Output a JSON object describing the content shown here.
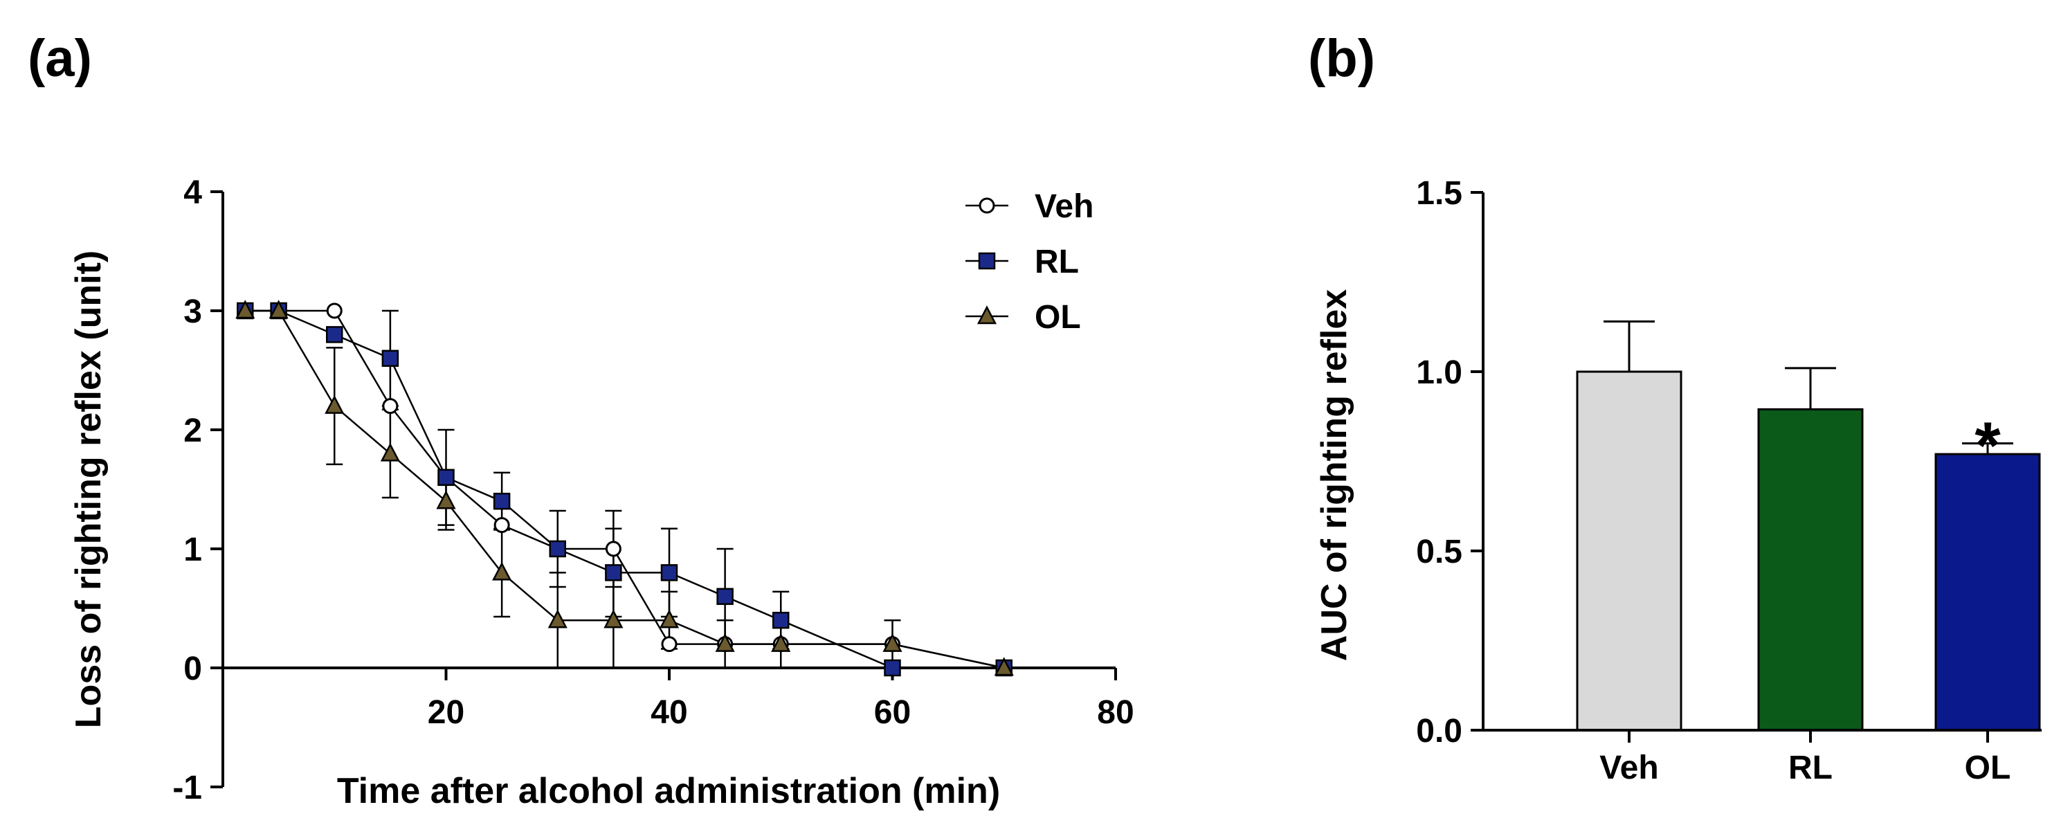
{
  "panels": {
    "a_label": "(a)",
    "b_label": "(b)"
  },
  "chart_data": [
    {
      "id": "a",
      "type": "line",
      "title": "",
      "xlabel": "Time after alcohol administration (min)",
      "ylabel": "Loss of righting reflex (unit)",
      "xlim": [
        0,
        80
      ],
      "ylim": [
        -1,
        4
      ],
      "xticks": [
        20,
        40,
        60,
        80
      ],
      "yticks": [
        -1,
        0,
        1,
        2,
        3,
        4
      ],
      "xtick_labels": [
        "20",
        "40",
        "60",
        "80"
      ],
      "ytick_labels": [
        "-1",
        "0",
        "1",
        "2",
        "3",
        "4"
      ],
      "grid": false,
      "legend_position": "top-right",
      "series": [
        {
          "name": "Veh",
          "marker": "open-circle",
          "color": "#000000",
          "fill": "#ffffff",
          "x": [
            2,
            5,
            10,
            15,
            20,
            25,
            30,
            35,
            40,
            45,
            50,
            60,
            70
          ],
          "y": [
            3,
            3,
            3,
            2.2,
            1.6,
            1.2,
            1.0,
            1.0,
            0.2,
            0.2,
            0.2,
            0.2,
            0
          ],
          "err": [
            0,
            0,
            0,
            0,
            0,
            0,
            0,
            0.32,
            0,
            0,
            0,
            0,
            0
          ]
        },
        {
          "name": "RL",
          "marker": "square",
          "color": "#000000",
          "fill": "#1b2a8a",
          "x": [
            2,
            5,
            10,
            15,
            20,
            25,
            30,
            35,
            40,
            45,
            50,
            60,
            70
          ],
          "y": [
            3,
            3,
            2.8,
            2.6,
            1.6,
            1.4,
            1.0,
            0.8,
            0.8,
            0.6,
            0.4,
            0,
            0
          ],
          "err": [
            0,
            0,
            0,
            0.4,
            0.4,
            0.24,
            0.32,
            0.37,
            0.37,
            0.4,
            0.24,
            0,
            0
          ]
        },
        {
          "name": "OL",
          "marker": "triangle",
          "color": "#000000",
          "fill": "#6b5a2e",
          "x": [
            2,
            5,
            10,
            15,
            20,
            25,
            30,
            35,
            40,
            45,
            50,
            60,
            70
          ],
          "y": [
            3,
            3,
            2.2,
            1.8,
            1.4,
            0.8,
            0.4,
            0.4,
            0.4,
            0.2,
            0.2,
            0.2,
            0
          ],
          "err": [
            0,
            0,
            0.49,
            0.37,
            0.24,
            0.37,
            0.4,
            0.4,
            0.24,
            0.2,
            0.2,
            0.2,
            0
          ]
        }
      ]
    },
    {
      "id": "b",
      "type": "bar",
      "title": "",
      "xlabel": "",
      "ylabel": "AUC of righting reflex",
      "ylim": [
        0,
        1.5
      ],
      "yticks": [
        0.0,
        0.5,
        1.0,
        1.5
      ],
      "ytick_labels": [
        "0.0",
        "0.5",
        "1.0",
        "1.5"
      ],
      "categories": [
        "Veh",
        "RL",
        "OL"
      ],
      "values": [
        1.0,
        0.895,
        0.77
      ],
      "errors": [
        0.14,
        0.115,
        0.03
      ],
      "colors": [
        "#d9d9d9",
        "#0b5a1a",
        "#0a1a8c"
      ],
      "annotations": [
        {
          "category": "OL",
          "text": "*"
        }
      ]
    }
  ]
}
